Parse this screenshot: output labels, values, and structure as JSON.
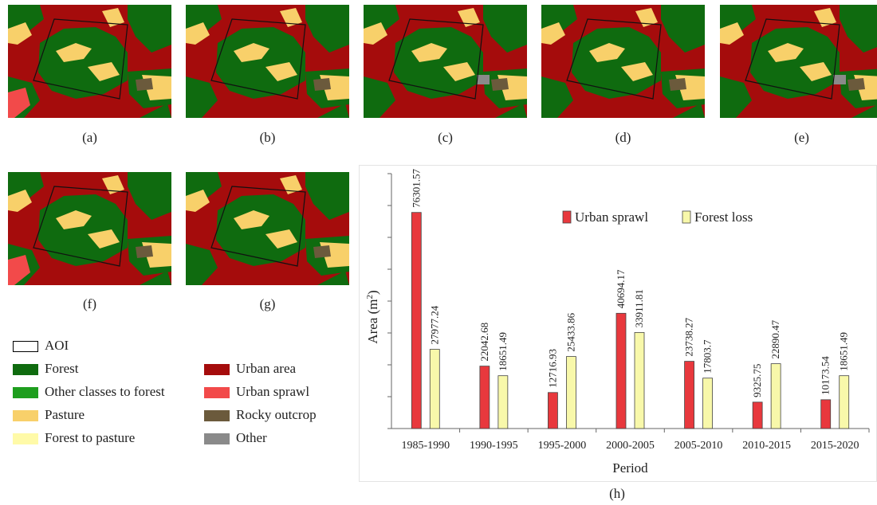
{
  "maps": [
    {
      "label": "(a)"
    },
    {
      "label": "(b)"
    },
    {
      "label": "(c)"
    },
    {
      "label": "(d)"
    },
    {
      "label": "(e)"
    },
    {
      "label": "(f)"
    },
    {
      "label": "(g)"
    }
  ],
  "legend": {
    "aoi": "AOI",
    "items": [
      {
        "label": "Forest",
        "color": "#0f6b0f"
      },
      {
        "label": "Other classes to forest",
        "color": "#1e9e1e"
      },
      {
        "label": "Pasture",
        "color": "#f8d06a"
      },
      {
        "label": "Forest to pasture",
        "color": "#fffaa8"
      },
      {
        "label": "Urban area",
        "color": "#a50c0c"
      },
      {
        "label": "Urban sprawl",
        "color": "#f24a4a"
      },
      {
        "label": "Rocky outcrop",
        "color": "#6b5a3c"
      },
      {
        "label": "Other",
        "color": "#8a8a8a"
      }
    ]
  },
  "chart_data": {
    "type": "bar",
    "panel_label": "(h)",
    "categories": [
      "1985-1990",
      "1990-1995",
      "1995-2000",
      "2000-2005",
      "2005-2010",
      "2010-2015",
      "2015-2020"
    ],
    "series": [
      {
        "name": "Urban sprawl",
        "color": "#e8383d",
        "values": [
          76301.57,
          22042.68,
          12716.93,
          40694.17,
          23738.27,
          9325.75,
          10173.54
        ],
        "labels": [
          "76301.57",
          "22042.68",
          "12716.93",
          "40694.17",
          "23738.27",
          "9325.75",
          "10173.54"
        ]
      },
      {
        "name": "Forest loss",
        "color": "#f8f8aa",
        "values": [
          27977.24,
          18651.49,
          25433.86,
          33911.81,
          17803.7,
          22890.47,
          18651.49
        ],
        "labels": [
          "27977.24",
          "18651.49",
          "25433.86",
          "33911.81",
          "17803.7",
          "22890.47",
          "18651.49"
        ]
      }
    ],
    "xlabel": "Period",
    "ylabel_main": "Area (m",
    "ylabel_sup": "2",
    "ylabel_end": ")",
    "ylim": [
      0,
      90000
    ],
    "ytick_values": [
      0,
      11250,
      22500,
      33750,
      45000,
      56250,
      67500,
      78750,
      90000
    ],
    "legend_position": "top-center",
    "grid": false
  }
}
